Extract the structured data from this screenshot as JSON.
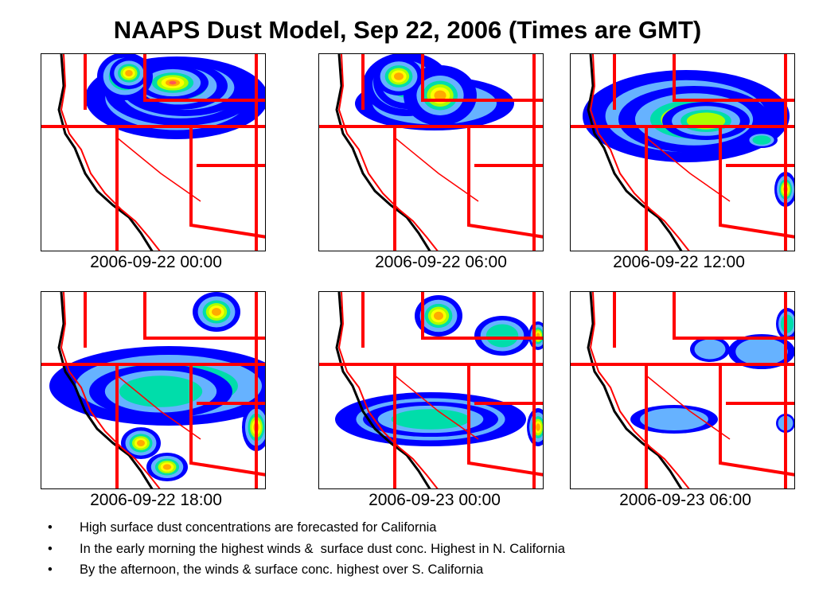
{
  "title": "NAAPS Dust Model, Sep 22, 2006 (Times are GMT)",
  "panels": [
    {
      "time": "2006-09-22 00:00"
    },
    {
      "time": "2006-09-22 06:00"
    },
    {
      "time": "2006-09-22 12:00"
    },
    {
      "time": "2006-09-22 18:00"
    },
    {
      "time": "2006-09-23 00:00"
    },
    {
      "time": "2006-09-23 06:00"
    }
  ],
  "bullets": [
    "High surface dust concentrations are forecasted for California",
    "In the early morning the highest winds &  surface dust conc. Highest in N. California",
    "By the afternoon, the winds & surface conc. highest over S. California"
  ],
  "bullet_symbol": "•",
  "colors": {
    "border": "#ff0000",
    "coast": "#000000",
    "dust_low": "#0000ff",
    "dust_lowmed": "#66b2ff",
    "dust_med": "#00ddaa",
    "dust_medhigh": "#aaff00",
    "dust_high": "#ffff00",
    "dust_vhigh": "#ffaa00",
    "dust_max": "#ff5555"
  }
}
